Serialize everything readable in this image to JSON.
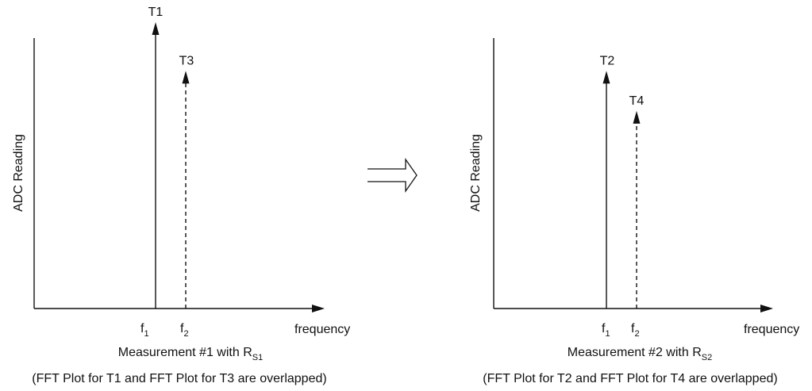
{
  "colors": {
    "ink": "#111111",
    "background": "#ffffff"
  },
  "transition_arrow": {
    "icon": "hollow-right-arrow"
  },
  "chart_data": [
    {
      "type": "spectrum",
      "ylabel": "ADC Reading",
      "xlabel": "frequency",
      "ticks": [
        {
          "letter": "f",
          "sub": "1"
        },
        {
          "letter": "f",
          "sub": "2"
        }
      ],
      "series": [
        {
          "name": "T1",
          "freq": "f1",
          "relative_height": 1.0,
          "style": "solid"
        },
        {
          "name": "T3",
          "freq": "f2",
          "relative_height": 0.83,
          "style": "dashed"
        }
      ],
      "caption": {
        "line1_prefix": "Measurement #1 with R",
        "line1_sub": "S1",
        "line2": "(FFT Plot for T1 and FFT Plot for T3 are overlapped)"
      }
    },
    {
      "type": "spectrum",
      "ylabel": "ADC Reading",
      "xlabel": "frequency",
      "ticks": [
        {
          "letter": "f",
          "sub": "1"
        },
        {
          "letter": "f",
          "sub": "2"
        }
      ],
      "series": [
        {
          "name": "T2",
          "freq": "f1",
          "relative_height": 0.83,
          "style": "solid"
        },
        {
          "name": "T4",
          "freq": "f2",
          "relative_height": 0.69,
          "style": "dashed"
        }
      ],
      "caption": {
        "line1_prefix": "Measurement #2 with R",
        "line1_sub": "S2",
        "line2": "(FFT Plot for T2 and FFT Plot for T4 are overlapped)"
      }
    }
  ]
}
